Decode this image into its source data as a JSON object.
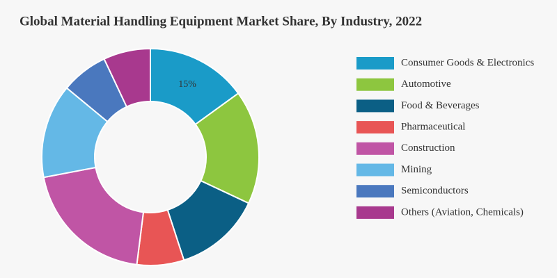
{
  "chart_data": {
    "type": "donut",
    "title": "Global Material Handling Equipment Market Share, By Industry, 2022",
    "categories": [
      "Consumer Goods & Electronics",
      "Automotive",
      "Food & Beverages",
      "Pharmaceutical",
      "Construction",
      "Mining",
      "Semiconductors",
      "Others (Aviation, Chemicals)"
    ],
    "values": [
      15,
      17,
      13,
      7,
      20,
      14,
      7,
      7
    ],
    "value_labels": [
      "15%",
      null,
      null,
      null,
      null,
      null,
      null,
      null
    ],
    "colors": [
      "#1a9bc8",
      "#8dc63f",
      "#0b5f85",
      "#e85555",
      "#c055a5",
      "#64b8e6",
      "#4a78be",
      "#a8398e"
    ],
    "legend": "right"
  }
}
